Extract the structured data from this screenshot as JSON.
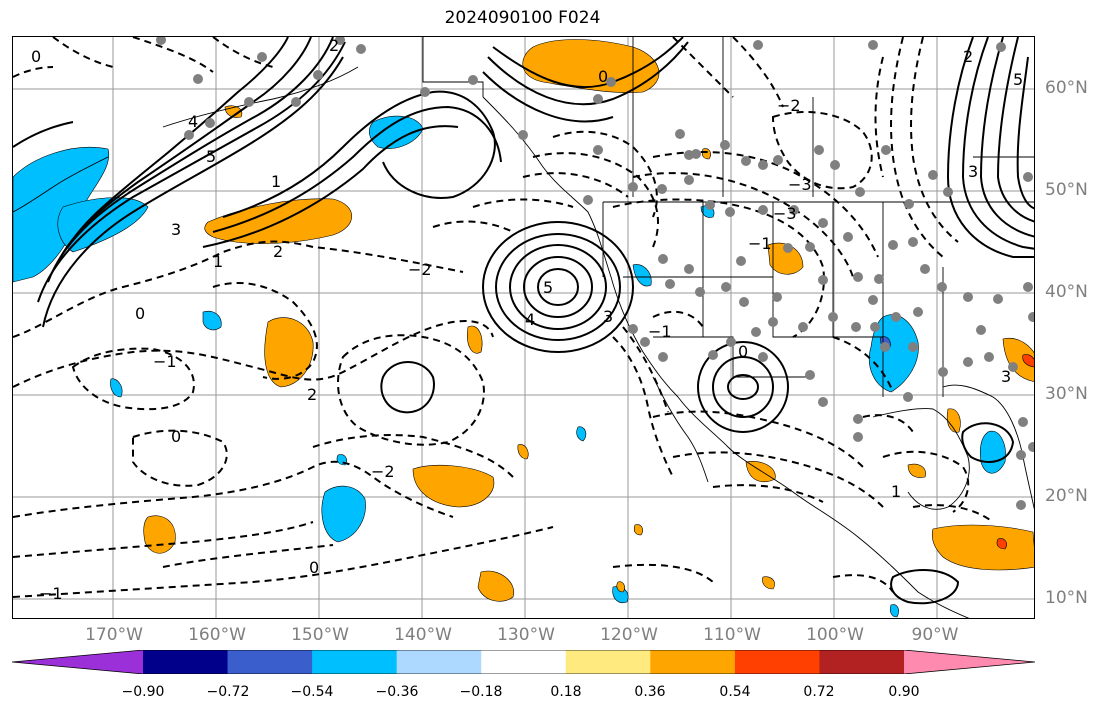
{
  "title": "2024090100 F024",
  "lon_labels": [
    "170°W",
    "160°W",
    "150°W",
    "140°W",
    "130°W",
    "120°W",
    "110°W",
    "100°W",
    "90°W"
  ],
  "lat_labels": [
    "60°N",
    "50°N",
    "40°N",
    "30°N",
    "20°N",
    "10°N"
  ],
  "colorbar": {
    "ticks": [
      "−0.90",
      "−0.72",
      "−0.54",
      "−0.36",
      "−0.18",
      "0.18",
      "0.36",
      "0.54",
      "0.72",
      "0.90"
    ],
    "colors": [
      "#9b30d9",
      "#00008b",
      "#3a5fcd",
      "#00bfff",
      "#add8ff",
      "#ffffff",
      "#ffea80",
      "#ffa500",
      "#ff4000",
      "#b22222",
      "#ff8ab0"
    ]
  },
  "contour_labels": [
    "2",
    "0",
    "4",
    "5",
    "3",
    "1",
    "5",
    "4",
    "3",
    "2",
    "1",
    "0",
    "−1",
    "−2",
    "−3",
    "0",
    "2",
    "−1",
    "0",
    "−2",
    "−1",
    "0",
    "−3",
    "−2",
    "−1",
    "0",
    "1",
    "2",
    "3",
    "5",
    "3"
  ]
}
